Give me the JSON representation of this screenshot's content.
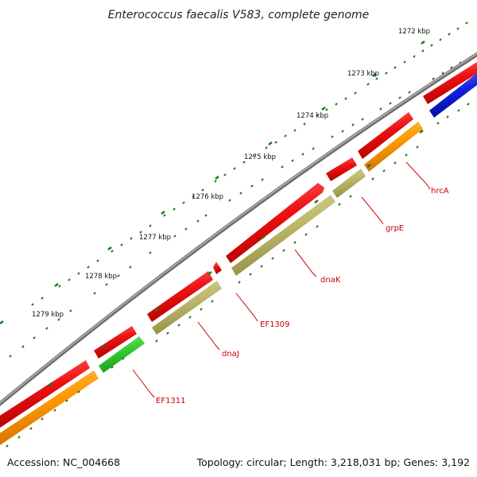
{
  "title": "Enterococcus faecalis V583, complete genome",
  "footer": {
    "accession": "Accession: NC_004668",
    "summary": "Topology: circular; Length: 3,218,031 bp; Genes: 3,192"
  },
  "colors": {
    "backbone": "#888888",
    "tick": "#1a7a1a",
    "label": "#cc0000",
    "cds": "#ee1111",
    "orange": "#ff9900",
    "khaki": "#bdb76b",
    "green": "#33cc33",
    "blue": "#1122dd"
  },
  "kbp_labels": [
    "1272 kbp",
    "1273 kbp",
    "1274 kbp",
    "1275 kbp",
    "1276 kbp",
    "1277 kbp",
    "1278 kbp",
    "1279 kbp"
  ],
  "genes": [
    "hrcA",
    "grpE",
    "dnaK",
    "EF1309",
    "dnaJ",
    "EF1311"
  ]
}
